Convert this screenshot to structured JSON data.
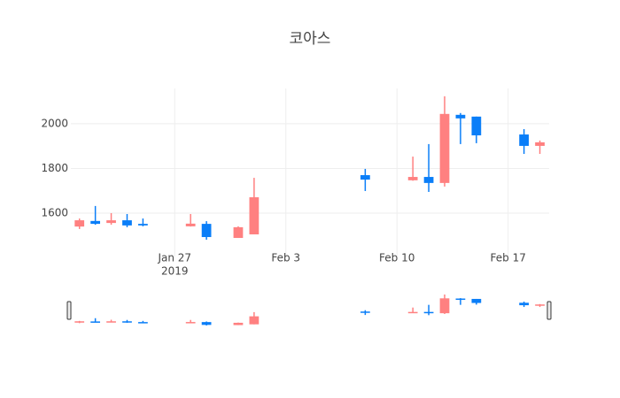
{
  "chart_data": {
    "type": "candlestick",
    "title": "코아스",
    "x": [
      "2019-01-21",
      "2019-01-22",
      "2019-01-23",
      "2019-01-24",
      "2019-01-25",
      "2019-01-28",
      "2019-01-29",
      "2019-01-31",
      "2019-02-01",
      "2019-02-08",
      "2019-02-11",
      "2019-02-12",
      "2019-02-13",
      "2019-02-14",
      "2019-02-15",
      "2019-02-18",
      "2019-02-19"
    ],
    "open": [
      1540,
      1565,
      1556,
      1568,
      1552,
      1541,
      1552,
      1489,
      1505,
      1770,
      1747,
      1762,
      1735,
      2040,
      2032,
      1952,
      1901
    ],
    "high": [
      1576,
      1632,
      1600,
      1596,
      1576,
      1596,
      1564,
      1541,
      1758,
      1798,
      1853,
      1909,
      2123,
      2048,
      2032,
      1976,
      1925
    ],
    "low": [
      1529,
      1548,
      1548,
      1537,
      1541,
      1540,
      1481,
      1489,
      1505,
      1699,
      1745,
      1695,
      1719,
      1909,
      1913,
      1865,
      1865
    ],
    "close": [
      1568,
      1552,
      1568,
      1545,
      1545,
      1553,
      1493,
      1537,
      1671,
      1750,
      1762,
      1735,
      2044,
      2024,
      1948,
      1901,
      1917
    ],
    "increasing_color": "#ff8080",
    "decreasing_color": "#0a7ef8",
    "xlim": [
      "2019-01-20T11:00",
      "2019-02-19T14:00"
    ],
    "xticks": [
      {
        "value": "2019-01-27",
        "label": "Jan 27"
      },
      {
        "value": "2019-02-03",
        "label": "Feb 3"
      },
      {
        "value": "2019-02-10",
        "label": "Feb 10"
      },
      {
        "value": "2019-02-17",
        "label": "Feb 17"
      }
    ],
    "x_year_label": "2019",
    "ylim": [
      1406,
      2158
    ],
    "yticks": [
      1600,
      1800,
      2000
    ],
    "grid": true,
    "rangeslider": true
  }
}
